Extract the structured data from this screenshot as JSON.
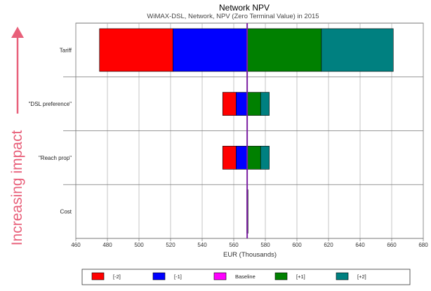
{
  "chart_data": {
    "type": "tornado",
    "title": "Network NPV",
    "subtitle": "WiMAX-DSL, Network, NPV (Zero Terminal Value) in 2015",
    "xlabel": "EUR (Thousands)",
    "xlim": [
      460,
      680
    ],
    "xticks": [
      460,
      480,
      500,
      520,
      540,
      560,
      580,
      600,
      620,
      640,
      660,
      680
    ],
    "baseline": 568.5,
    "categories": [
      "Tariff",
      "\"DSL preference\"",
      "\"Reach prop\"",
      "Cost"
    ],
    "series": [
      {
        "name": "[-2]",
        "color": "#ff0000",
        "ranges": [
          [
            475,
            521.5
          ],
          [
            553,
            561.5
          ],
          [
            553,
            561.5
          ],
          [
            568.3,
            568.5
          ]
        ]
      },
      {
        "name": "[-1]",
        "color": "#0000ff",
        "ranges": [
          [
            521.5,
            568.5
          ],
          [
            561.5,
            568.5
          ],
          [
            561.5,
            568.5
          ],
          [
            568.3,
            568.5
          ]
        ]
      },
      {
        "name": "Baseline",
        "color": "#ff00ff",
        "ranges": []
      },
      {
        "name": "[+1]",
        "color": "#008000",
        "ranges": [
          [
            568.5,
            615.5
          ],
          [
            568.5,
            577
          ],
          [
            568.5,
            577
          ],
          [
            568.5,
            568.7
          ]
        ]
      },
      {
        "name": "[+2]",
        "color": "#008080",
        "ranges": [
          [
            615.5,
            661
          ],
          [
            577,
            582.5
          ],
          [
            577,
            582.5
          ],
          [
            568.7,
            568.9
          ]
        ]
      }
    ],
    "grid": true,
    "legend_position": "bottom"
  },
  "side_label": "Increasing impact"
}
